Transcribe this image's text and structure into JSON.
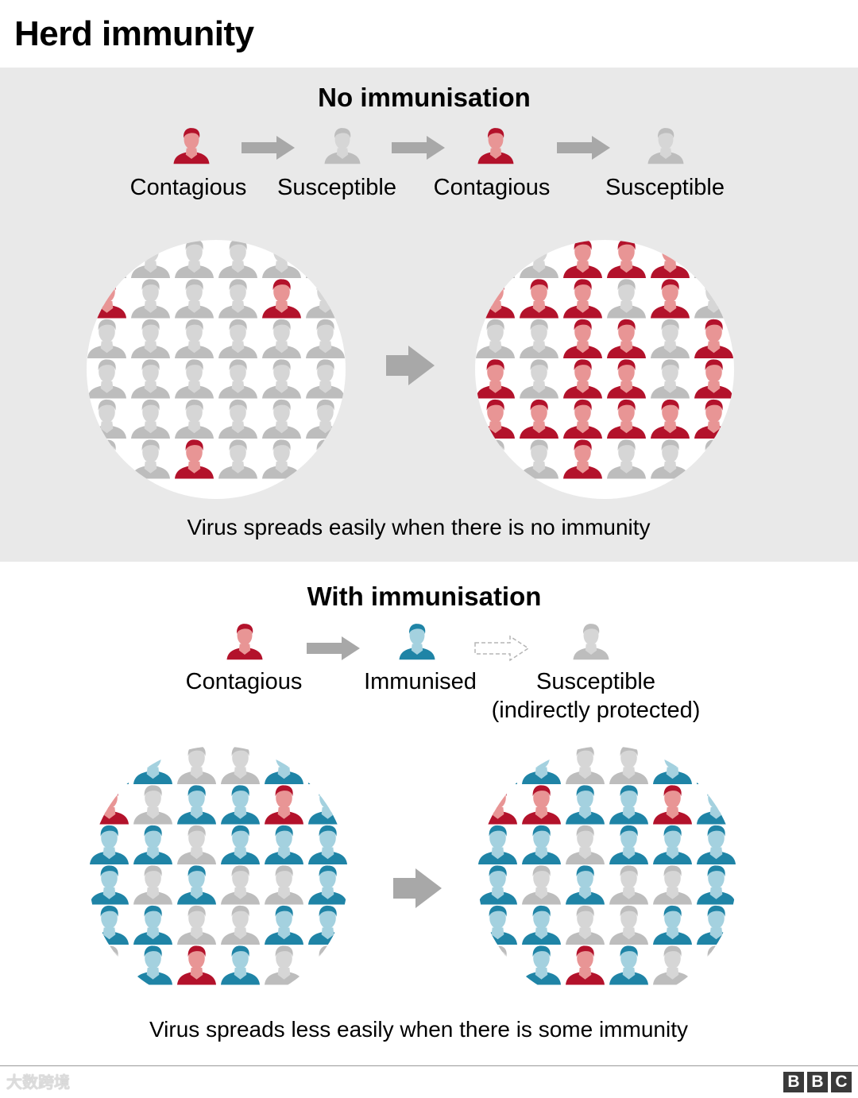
{
  "title": "Herd immunity",
  "no_immunisation": {
    "heading": "No immunisation",
    "legend": [
      "Contagious",
      "Susceptible",
      "Contagious",
      "Susceptible"
    ],
    "before": {
      "rows": [
        "GGGGGG",
        "CGGGCG",
        "GGGGGG",
        "GGGGGG",
        "GGGGGG",
        "GGCGGG"
      ]
    },
    "after": {
      "rows": [
        "GGCCCG",
        "CCCGCG",
        "GGCCGC",
        "CGCCGC",
        "CCCCCC",
        "GGCGGG"
      ]
    },
    "caption": "Virus spreads easily when there is no immunity"
  },
  "with_immunisation": {
    "heading": "With immunisation",
    "legend": {
      "contagious": "Contagious",
      "immunised": "Immunised",
      "susceptible_line1": "Susceptible",
      "susceptible_line2": "(indirectly protected)"
    },
    "before": {
      "rows": [
        "BBGGBB",
        "CGBBCB",
        "BBGBBB",
        "BGBGGB",
        "BBGGBB",
        "GBCBGG"
      ]
    },
    "after": {
      "rows": [
        "BBGGBB",
        "CCBBCB",
        "BBGBBB",
        "BGBGGB",
        "BBGGBB",
        "GBCBGG"
      ]
    },
    "caption": "Virus spreads less easily when there is some immunity"
  },
  "footer": {
    "watermark": "大数跨境",
    "logo_letters": [
      "B",
      "B",
      "C"
    ]
  },
  "colors": {
    "panel_bg": "#e9e9e9",
    "contagious_skin": "#e89595",
    "contagious_dark": "#b3122b",
    "susceptible_skin": "#d6d6d6",
    "susceptible_dark": "#bdbdbd",
    "immunised_skin": "#a4d1df",
    "immunised_dark": "#1f84a6",
    "arrow": "#a8a8a8"
  }
}
